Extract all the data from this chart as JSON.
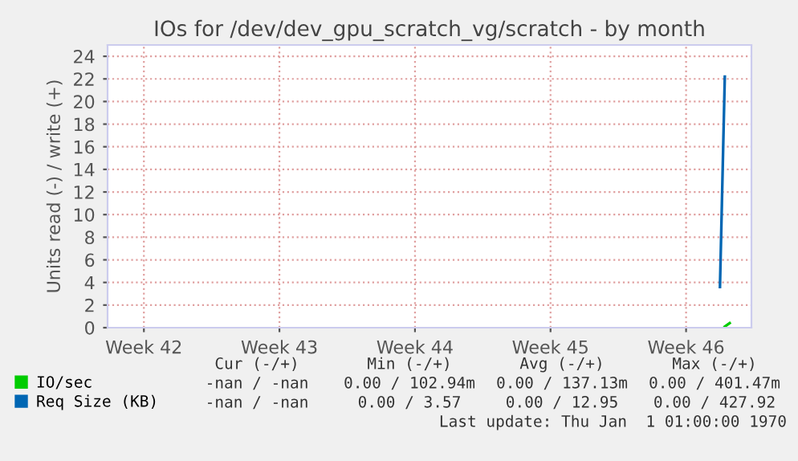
{
  "chart_data": {
    "type": "line",
    "title": "IOs for /dev/dev_gpu_scratch_vg/scratch - by month",
    "ylabel": "Units read (-) / write (+)",
    "categories": [
      null,
      null,
      null,
      null,
      null,
      null,
      null,
      "Week 42",
      null,
      null,
      null,
      null,
      null,
      null,
      null,
      null,
      null,
      null,
      null,
      null,
      null,
      null,
      null,
      null,
      null,
      null,
      null,
      null,
      null,
      null,
      null,
      null,
      null,
      null,
      null,
      "Week 43",
      null,
      null,
      null,
      null,
      null,
      null,
      null,
      null,
      null,
      null,
      null,
      null,
      null,
      null,
      null,
      null,
      null,
      null,
      null,
      null,
      null,
      null,
      null,
      null,
      null,
      null,
      null,
      "Week 44",
      null,
      null,
      null,
      null,
      null,
      null,
      null,
      null,
      null,
      null,
      null,
      null,
      null,
      null,
      null,
      null,
      null,
      null,
      null,
      null,
      null,
      null,
      null,
      null,
      null,
      null,
      null,
      "Week 45",
      null,
      null,
      null,
      null,
      null,
      null,
      null,
      null,
      null,
      null,
      null,
      null,
      null,
      null,
      null,
      null,
      null,
      null,
      null,
      null,
      null,
      null,
      null,
      null,
      null,
      null,
      null,
      "Week 46",
      null,
      null,
      null,
      null,
      null,
      null,
      null,
      null,
      null,
      null,
      null,
      null,
      null
    ],
    "series": [
      {
        "name": "IO/sec",
        "color": "#00cc00",
        "values": [
          null,
          null,
          null,
          null,
          null,
          null,
          null,
          null,
          null,
          null,
          null,
          null,
          null,
          null,
          null,
          null,
          null,
          null,
          null,
          null,
          null,
          null,
          null,
          null,
          null,
          null,
          null,
          null,
          null,
          null,
          null,
          null,
          null,
          null,
          null,
          null,
          null,
          null,
          null,
          null,
          null,
          null,
          null,
          null,
          null,
          null,
          null,
          null,
          null,
          null,
          null,
          null,
          null,
          null,
          null,
          null,
          null,
          null,
          null,
          null,
          null,
          null,
          null,
          null,
          null,
          null,
          null,
          null,
          null,
          null,
          null,
          null,
          null,
          null,
          null,
          null,
          null,
          null,
          null,
          null,
          null,
          null,
          null,
          null,
          null,
          null,
          null,
          null,
          null,
          null,
          null,
          null,
          null,
          null,
          null,
          null,
          null,
          null,
          null,
          null,
          null,
          null,
          null,
          null,
          null,
          null,
          null,
          null,
          null,
          null,
          null,
          null,
          null,
          null,
          null,
          null,
          null,
          null,
          null,
          null,
          null,
          null,
          null,
          null,
          null,
          null,
          null,
          0.1,
          0.4,
          null,
          null,
          null,
          null
        ]
      },
      {
        "name": "Req Size (KB)",
        "color": "#0066b3",
        "values": [
          null,
          null,
          null,
          null,
          null,
          null,
          null,
          null,
          null,
          null,
          null,
          null,
          null,
          null,
          null,
          null,
          null,
          null,
          null,
          null,
          null,
          null,
          null,
          null,
          null,
          null,
          null,
          null,
          null,
          null,
          null,
          null,
          null,
          null,
          null,
          null,
          null,
          null,
          null,
          null,
          null,
          null,
          null,
          null,
          null,
          null,
          null,
          null,
          null,
          null,
          null,
          null,
          null,
          null,
          null,
          null,
          null,
          null,
          null,
          null,
          null,
          null,
          null,
          null,
          null,
          null,
          null,
          null,
          null,
          null,
          null,
          null,
          null,
          null,
          null,
          null,
          null,
          null,
          null,
          null,
          null,
          null,
          null,
          null,
          null,
          null,
          null,
          null,
          null,
          null,
          null,
          null,
          null,
          null,
          null,
          null,
          null,
          null,
          null,
          null,
          null,
          null,
          null,
          null,
          null,
          null,
          null,
          null,
          null,
          null,
          null,
          null,
          null,
          null,
          null,
          null,
          null,
          null,
          null,
          null,
          null,
          null,
          null,
          null,
          null,
          null,
          3.6,
          22.2,
          null,
          null,
          null,
          null,
          null
        ]
      }
    ],
    "ylim": [
      0,
      25
    ],
    "yticks": [
      0,
      2,
      4,
      6,
      8,
      10,
      12,
      14,
      16,
      18,
      20,
      22,
      24
    ],
    "grid": true,
    "legend": "bottom left",
    "marker": "none",
    "line_style": "solid",
    "annotations": [
      "Cur (-/+)",
      "Min (-/+)",
      "Avg (-/+)",
      "Max (-/+)",
      "-nan / -nan",
      "0.00 / 102.94m",
      "0.00 / 137.13m",
      "0.00 / 401.47m",
      "-nan / -nan",
      "0.00 / 3.57",
      "0.00 / 12.95",
      "0.00 / 427.92",
      "Last update: Thu Jan  1 01:00:00 1970"
    ]
  }
}
